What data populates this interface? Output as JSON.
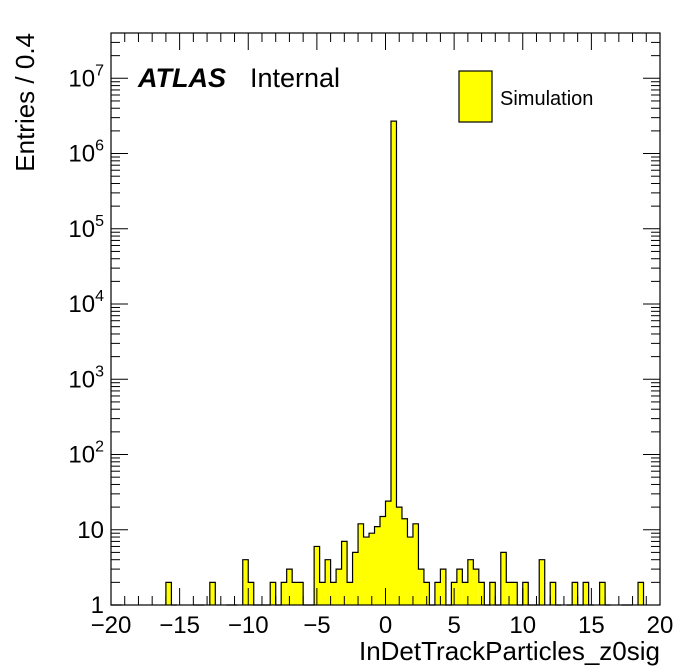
{
  "chart_data": {
    "type": "bar",
    "style": "histogram",
    "xlabel": "InDetTrackParticles_z0sig",
    "ylabel": "Entries / 0.4",
    "xlim": [
      -20,
      20
    ],
    "ylim": [
      1,
      40000000
    ],
    "log_y": true,
    "grid": false,
    "bin_width": 0.4,
    "xticks": [
      -20,
      -15,
      -10,
      -5,
      0,
      5,
      10,
      15,
      20
    ],
    "xtick_labels": [
      "−20",
      "−15",
      "−10",
      "−5",
      "0",
      "5",
      "10",
      "15",
      "20"
    ],
    "ytick_labels": [
      {
        "value": 1,
        "base": "1",
        "exp": ""
      },
      {
        "value": 10,
        "base": "10",
        "exp": ""
      },
      {
        "value": 100,
        "base": "10",
        "exp": "2"
      },
      {
        "value": 1000,
        "base": "10",
        "exp": "3"
      },
      {
        "value": 10000,
        "base": "10",
        "exp": "4"
      },
      {
        "value": 100000,
        "base": "10",
        "exp": "5"
      },
      {
        "value": 1000000,
        "base": "10",
        "exp": "6"
      },
      {
        "value": 10000000,
        "base": "10",
        "exp": "7"
      }
    ],
    "fill_color": "#ffff00",
    "line_color": "#000000",
    "label": {
      "experiment": "ATLAS",
      "status": "Internal"
    },
    "legend": {
      "position": "top-right",
      "entries": [
        "Simulation"
      ]
    },
    "series": [
      {
        "name": "Simulation",
        "bins": [
          {
            "x": -20.0,
            "y": 1
          },
          {
            "x": -19.6,
            "y": 1
          },
          {
            "x": -16.0,
            "y": 2
          },
          {
            "x": -15.6,
            "y": 1
          },
          {
            "x": -14.0,
            "y": 1
          },
          {
            "x": -13.6,
            "y": 1
          },
          {
            "x": -12.8,
            "y": 2
          },
          {
            "x": -11.6,
            "y": 1
          },
          {
            "x": -11.2,
            "y": 1
          },
          {
            "x": -10.4,
            "y": 4
          },
          {
            "x": -10.0,
            "y": 2
          },
          {
            "x": -9.6,
            "y": 1
          },
          {
            "x": -9.2,
            "y": 1
          },
          {
            "x": -8.8,
            "y": 1
          },
          {
            "x": -8.4,
            "y": 2
          },
          {
            "x": -8.0,
            "y": 1
          },
          {
            "x": -7.6,
            "y": 2
          },
          {
            "x": -7.2,
            "y": 3
          },
          {
            "x": -6.8,
            "y": 2
          },
          {
            "x": -6.4,
            "y": 2
          },
          {
            "x": -6.0,
            "y": 1
          },
          {
            "x": -5.6,
            "y": 1
          },
          {
            "x": -5.2,
            "y": 6
          },
          {
            "x": -4.8,
            "y": 2
          },
          {
            "x": -4.4,
            "y": 4
          },
          {
            "x": -4.0,
            "y": 2
          },
          {
            "x": -3.6,
            "y": 3
          },
          {
            "x": -3.2,
            "y": 7
          },
          {
            "x": -2.8,
            "y": 2
          },
          {
            "x": -2.4,
            "y": 5
          },
          {
            "x": -2.0,
            "y": 12
          },
          {
            "x": -1.6,
            "y": 8
          },
          {
            "x": -1.2,
            "y": 9
          },
          {
            "x": -0.8,
            "y": 11
          },
          {
            "x": -0.4,
            "y": 15
          },
          {
            "x": 0.0,
            "y": 24
          },
          {
            "x": 0.4,
            "y": 2700000
          },
          {
            "x": 0.8,
            "y": 20
          },
          {
            "x": 1.2,
            "y": 14
          },
          {
            "x": 1.6,
            "y": 8
          },
          {
            "x": 2.0,
            "y": 12
          },
          {
            "x": 2.4,
            "y": 3
          },
          {
            "x": 2.8,
            "y": 2
          },
          {
            "x": 3.2,
            "y": 1
          },
          {
            "x": 3.6,
            "y": 2
          },
          {
            "x": 4.0,
            "y": 3
          },
          {
            "x": 4.4,
            "y": 1
          },
          {
            "x": 4.8,
            "y": 2
          },
          {
            "x": 5.2,
            "y": 3
          },
          {
            "x": 5.6,
            "y": 2
          },
          {
            "x": 6.0,
            "y": 4
          },
          {
            "x": 6.4,
            "y": 3
          },
          {
            "x": 6.8,
            "y": 2
          },
          {
            "x": 7.2,
            "y": 1
          },
          {
            "x": 7.6,
            "y": 2
          },
          {
            "x": 8.0,
            "y": 1
          },
          {
            "x": 8.4,
            "y": 5
          },
          {
            "x": 8.8,
            "y": 2
          },
          {
            "x": 9.2,
            "y": 2
          },
          {
            "x": 9.6,
            "y": 1
          },
          {
            "x": 10.0,
            "y": 2
          },
          {
            "x": 10.4,
            "y": 1
          },
          {
            "x": 10.8,
            "y": 1
          },
          {
            "x": 11.2,
            "y": 4
          },
          {
            "x": 12.0,
            "y": 2
          },
          {
            "x": 12.4,
            "y": 1
          },
          {
            "x": 13.2,
            "y": 1
          },
          {
            "x": 13.6,
            "y": 2
          },
          {
            "x": 14.0,
            "y": 1
          },
          {
            "x": 14.4,
            "y": 2
          },
          {
            "x": 14.8,
            "y": 1
          },
          {
            "x": 15.6,
            "y": 2
          },
          {
            "x": 16.0,
            "y": 1
          },
          {
            "x": 17.2,
            "y": 1
          },
          {
            "x": 17.6,
            "y": 1
          },
          {
            "x": 18.4,
            "y": 2
          }
        ]
      }
    ]
  }
}
